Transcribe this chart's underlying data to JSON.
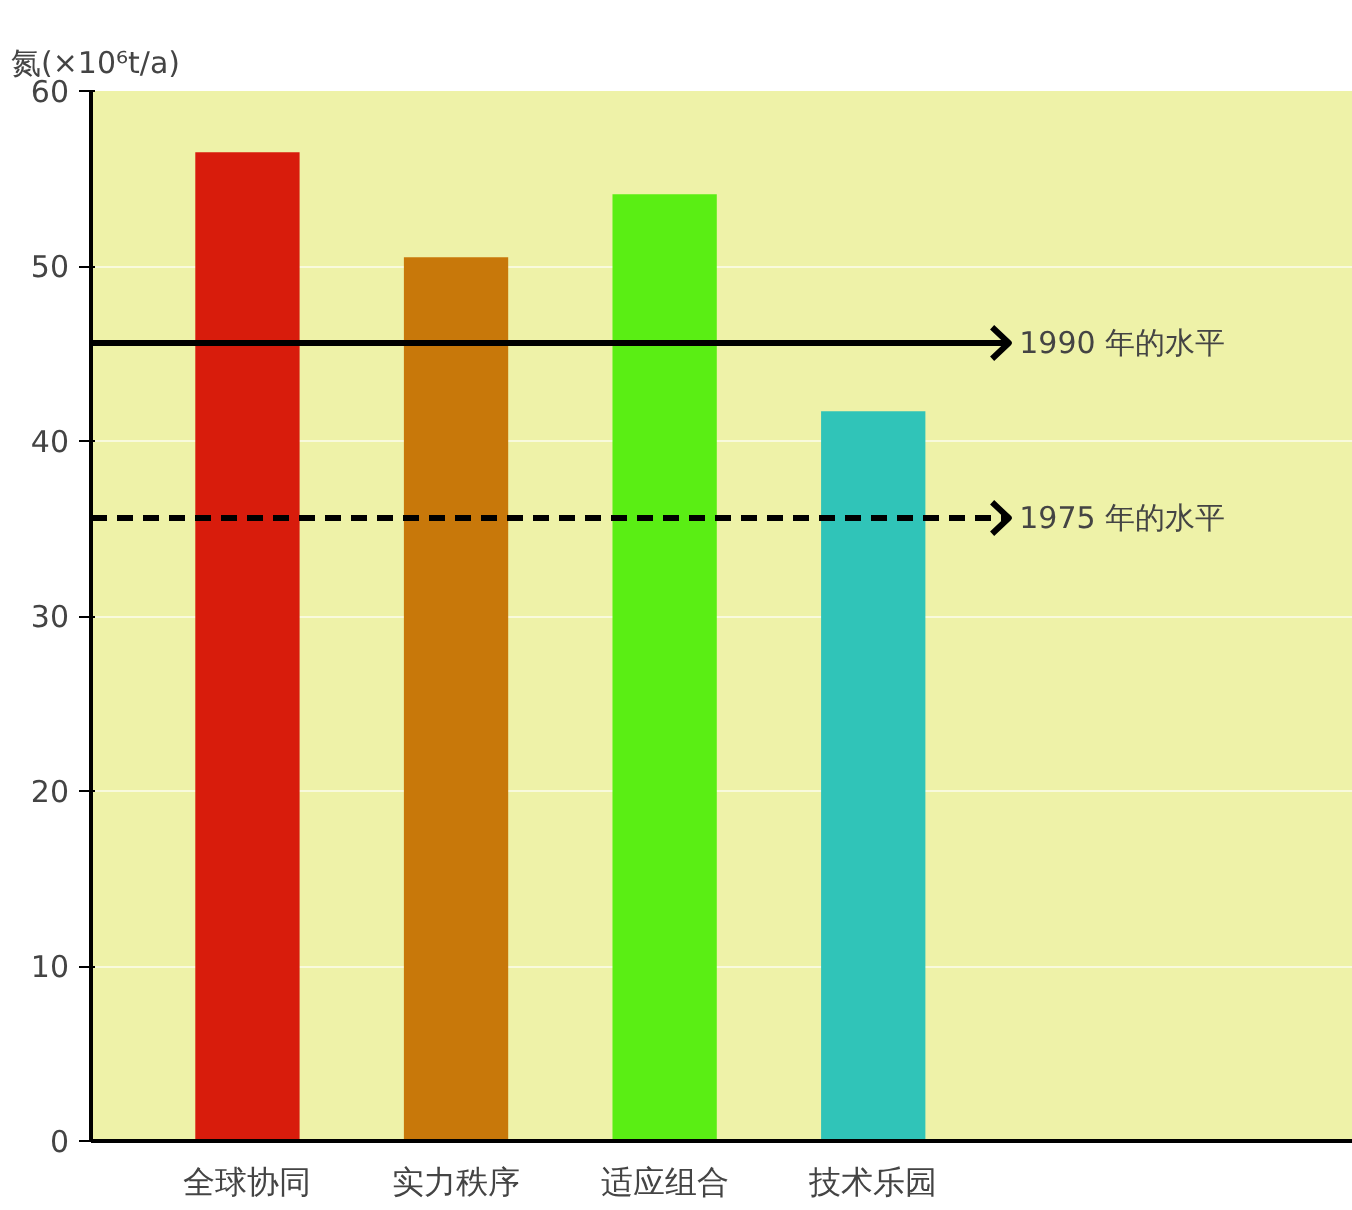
{
  "chart_data": {
    "type": "bar",
    "ylabel": "氮(×10⁶t/a)",
    "categories": [
      "全球协同",
      "实力秩序",
      "适应组合",
      "技术乐园"
    ],
    "values": [
      56.5,
      50.5,
      54.1,
      41.7
    ],
    "colors": [
      "#d81c0c",
      "#c8780a",
      "#5aee14",
      "#30c4b8"
    ],
    "ylim": [
      0,
      60
    ],
    "yticks": [
      0,
      10,
      20,
      30,
      40,
      50,
      60
    ],
    "grid": "y",
    "ref_lines": [
      {
        "axis": "y",
        "value": 45.6,
        "label": "1990 年的水平",
        "line_style": "solid",
        "color": "#000000"
      },
      {
        "axis": "y",
        "value": 35.6,
        "label": "1975 年的水平",
        "line_style": "dashed",
        "color": "#000000"
      }
    ]
  }
}
